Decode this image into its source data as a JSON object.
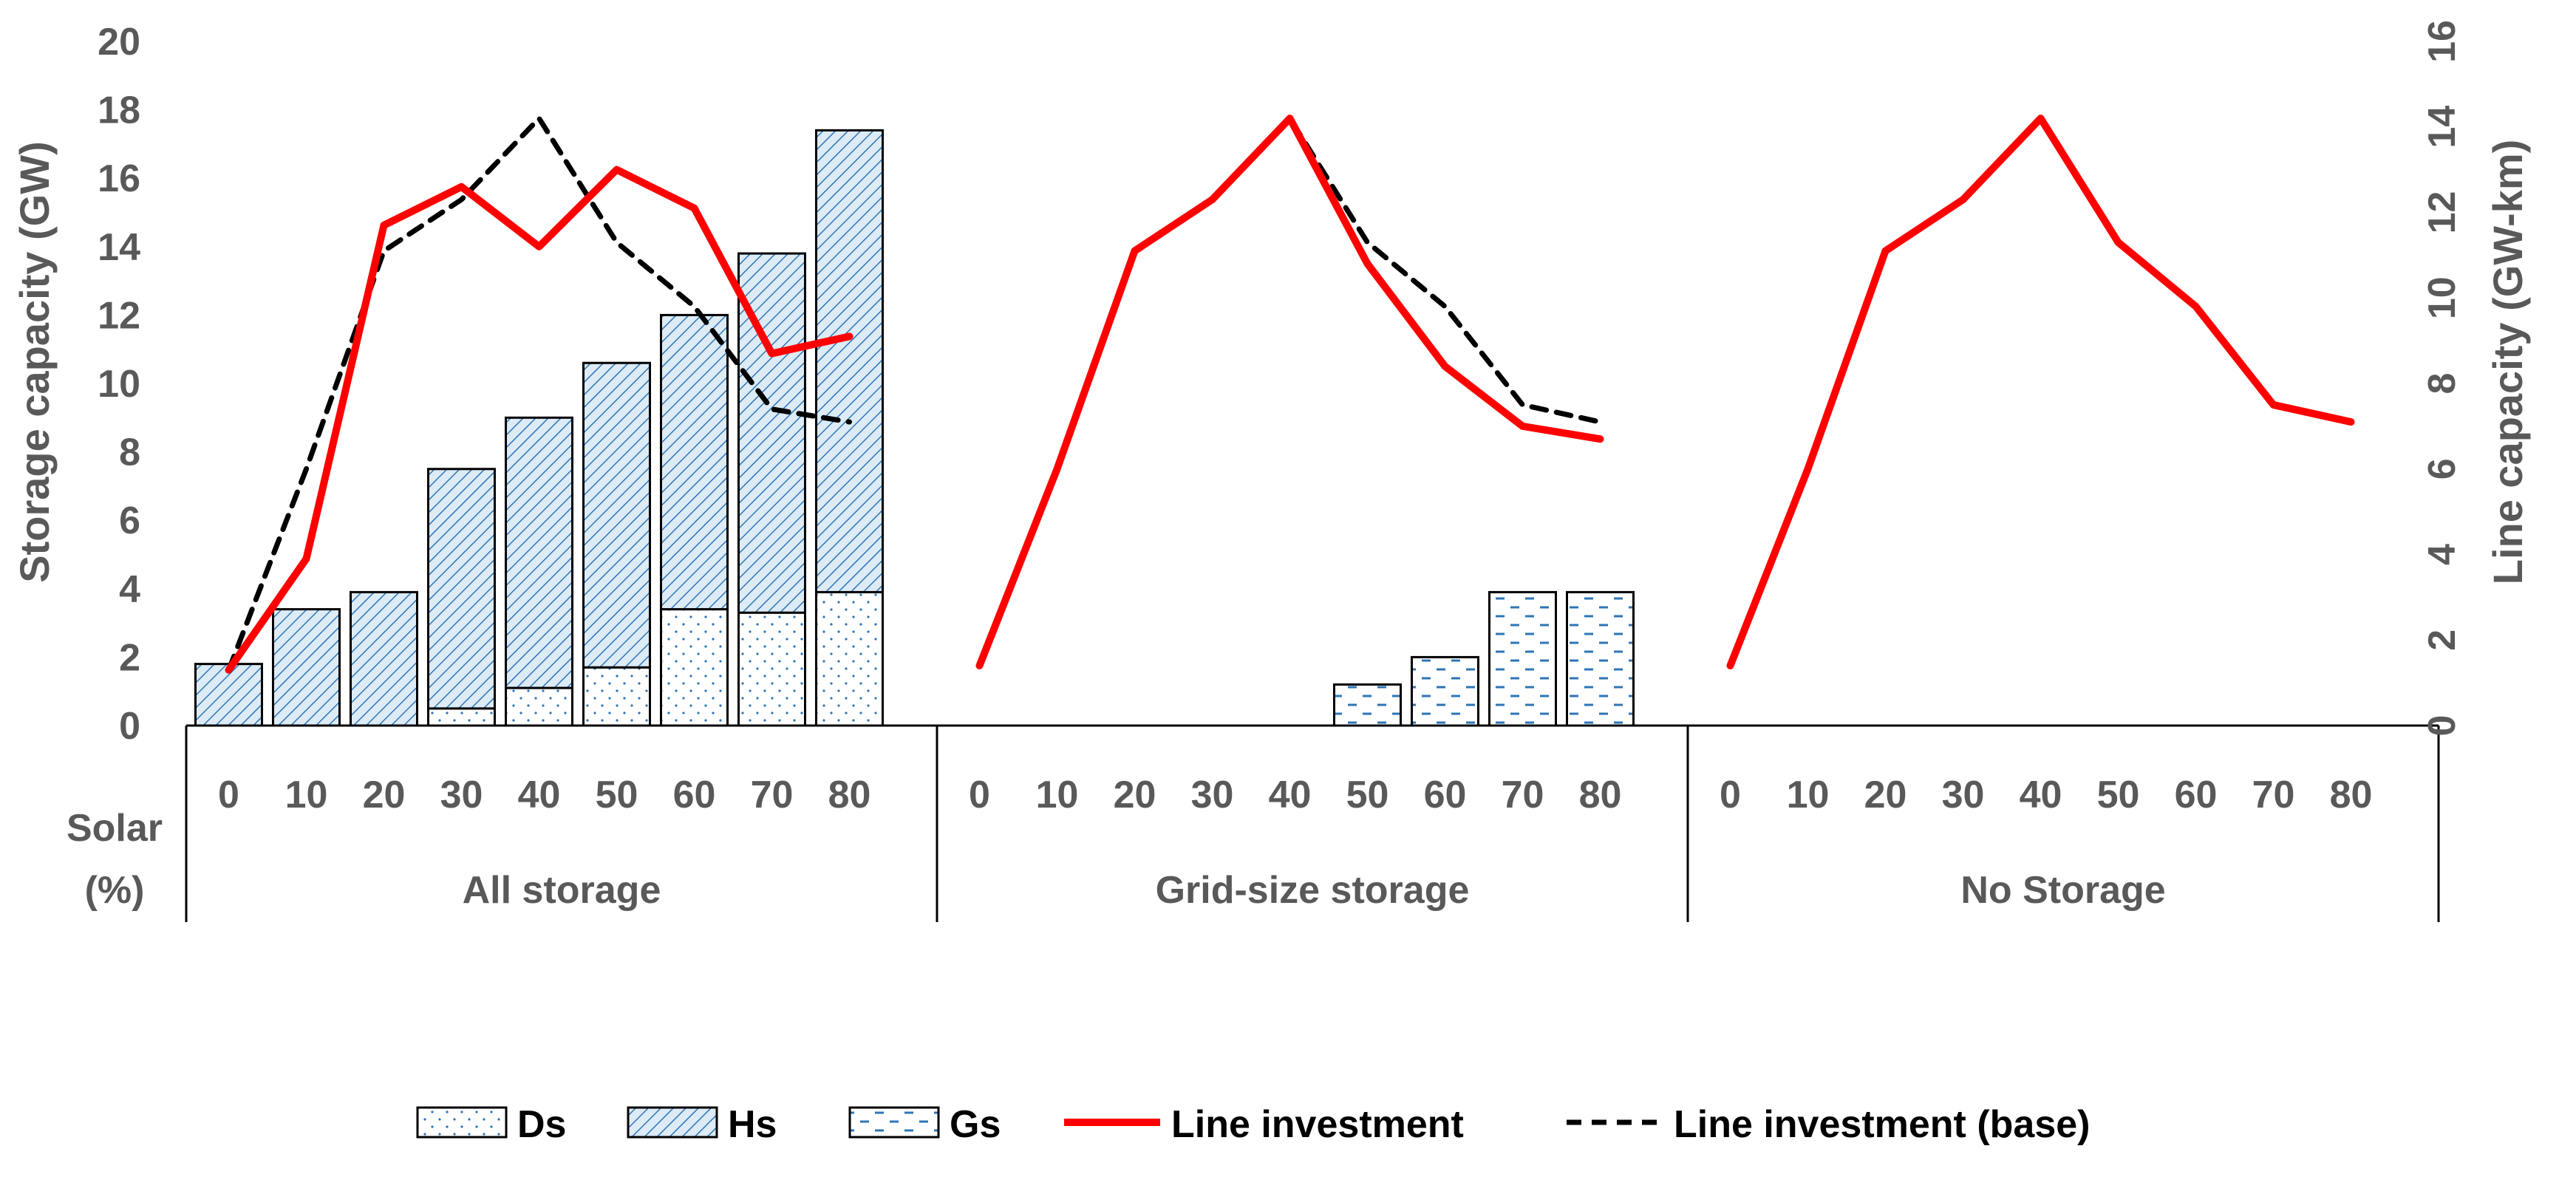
{
  "chart_data": {
    "type": "bar",
    "title": "",
    "ylabel_left": "Storage capacity (GW)",
    "ylabel_right": "Line capacity (GW-km)",
    "ylim_left": [
      0,
      20
    ],
    "ylim_right": [
      0,
      16
    ],
    "yticks_left": [
      "0",
      "2",
      "4",
      "6",
      "8",
      "10",
      "12",
      "14",
      "16",
      "18",
      "20"
    ],
    "yticks_right": [
      "0",
      "2",
      "4",
      "6",
      "8",
      "10",
      "12",
      "14",
      "16"
    ],
    "xlabel_lines": [
      "Solar",
      "(%)"
    ],
    "categories": [
      "0",
      "10",
      "20",
      "30",
      "40",
      "50",
      "60",
      "70",
      "80"
    ],
    "groups": [
      {
        "name": "All storage",
        "bars": {
          "Ds": [
            0,
            0,
            0,
            0.5,
            1.1,
            1.7,
            3.4,
            3.3,
            3.9
          ],
          "Hs": [
            1.8,
            3.4,
            3.9,
            7.0,
            7.9,
            8.9,
            8.6,
            10.5,
            13.5
          ],
          "Gs": [
            0,
            0,
            0,
            0,
            0,
            0,
            0,
            0,
            0
          ]
        },
        "line_investment": [
          1.3,
          3.9,
          11.7,
          12.6,
          11.2,
          13.0,
          12.1,
          8.7,
          9.1
        ],
        "line_investment_base": [
          1.3,
          6.0,
          11.1,
          12.3,
          14.2,
          11.3,
          9.8,
          7.4,
          7.1
        ]
      },
      {
        "name": "Grid-size storage",
        "bars": {
          "Ds": [
            0,
            0,
            0,
            0,
            0,
            0,
            0,
            0,
            0
          ],
          "Hs": [
            0,
            0,
            0,
            0,
            0,
            0,
            0,
            0,
            0
          ],
          "Gs": [
            0,
            0,
            0,
            0,
            0,
            1.2,
            2.0,
            3.9,
            3.9
          ]
        },
        "line_investment": [
          1.4,
          6.0,
          11.1,
          12.3,
          14.2,
          10.8,
          8.4,
          7.0,
          6.7
        ],
        "line_investment_base": [
          1.4,
          6.0,
          11.1,
          12.3,
          14.2,
          11.3,
          9.8,
          7.5,
          7.1
        ]
      },
      {
        "name": "No Storage",
        "bars": {
          "Ds": [
            0,
            0,
            0,
            0,
            0,
            0,
            0,
            0,
            0
          ],
          "Hs": [
            0,
            0,
            0,
            0,
            0,
            0,
            0,
            0,
            0
          ],
          "Gs": [
            0,
            0,
            0,
            0,
            0,
            0,
            0,
            0,
            0
          ]
        },
        "line_investment": [
          1.4,
          6.0,
          11.1,
          12.3,
          14.2,
          11.3,
          9.8,
          7.5,
          7.1
        ],
        "line_investment_base": []
      }
    ],
    "legend": [
      {
        "key": "Ds",
        "label": "Ds",
        "kind": "bar"
      },
      {
        "key": "Hs",
        "label": "Hs",
        "kind": "bar"
      },
      {
        "key": "Gs",
        "label": "Gs",
        "kind": "bar"
      },
      {
        "key": "line_investment",
        "label": "Line investment",
        "kind": "line"
      },
      {
        "key": "line_investment_base",
        "label": "Line investment (base)",
        "kind": "line-dashed"
      }
    ],
    "legend_position": "bottom",
    "colors": {
      "line_investment": "#ff0000",
      "line_investment_base": "#000000",
      "hatch": "#2e75b6",
      "text": "#595959"
    }
  }
}
